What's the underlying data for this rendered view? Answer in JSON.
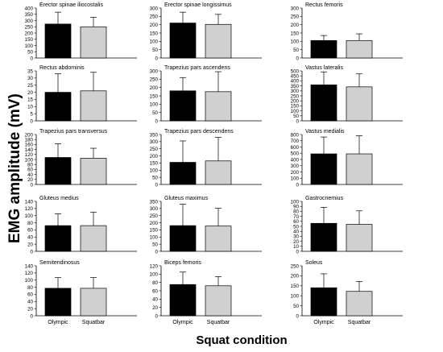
{
  "figure": {
    "ylabel": "EMG amplitude (mV)",
    "xlabel": "Squat condition",
    "legend_categories": [
      "Olympic",
      "Squatbar"
    ]
  },
  "colors": {
    "olympic": "#000000",
    "squatbar": "#d0d0d0",
    "axis": "#000000"
  },
  "chart_data": [
    {
      "type": "bar",
      "title": "Erector spinae iliocostalis",
      "categories": [
        "Olympic",
        "Squatbar"
      ],
      "values": [
        272,
        250
      ],
      "errors": [
        95,
        75
      ],
      "ylim": [
        0,
        400
      ],
      "yticks": [
        0,
        50,
        100,
        150,
        200,
        250,
        300,
        350,
        400
      ],
      "show_xticks": false
    },
    {
      "type": "bar",
      "title": "Erector spinae longissimus",
      "categories": [
        "Olympic",
        "Squatbar"
      ],
      "values": [
        210,
        202
      ],
      "errors": [
        65,
        60
      ],
      "ylim": [
        0,
        300
      ],
      "yticks": [
        0,
        50,
        100,
        150,
        200,
        250,
        300
      ],
      "show_xticks": false
    },
    {
      "type": "bar",
      "title": "Rectus femoris",
      "categories": [
        "Olympic",
        "Squatbar"
      ],
      "values": [
        105,
        105
      ],
      "errors": [
        30,
        40
      ],
      "ylim": [
        0,
        300
      ],
      "yticks": [
        0,
        50,
        100,
        150,
        200,
        250,
        300
      ],
      "show_xticks": false
    },
    {
      "type": "bar",
      "title": "Rectus abdominis",
      "categories": [
        "Olympic",
        "Squatbar"
      ],
      "values": [
        20,
        21
      ],
      "errors": [
        13,
        13
      ],
      "ylim": [
        0,
        35
      ],
      "yticks": [
        0,
        5,
        10,
        15,
        20,
        25,
        30,
        35
      ],
      "show_xticks": false
    },
    {
      "type": "bar",
      "title": "Trapezius pars ascendens",
      "categories": [
        "Olympic",
        "Squatbar"
      ],
      "values": [
        180,
        175
      ],
      "errors": [
        80,
        120
      ],
      "ylim": [
        0,
        300
      ],
      "yticks": [
        0,
        50,
        100,
        150,
        200,
        250,
        300
      ],
      "show_xticks": false
    },
    {
      "type": "bar",
      "title": "Vastus lateralis",
      "categories": [
        "Olympic",
        "Squatbar"
      ],
      "values": [
        360,
        340
      ],
      "errors": [
        130,
        130
      ],
      "ylim": [
        0,
        500
      ],
      "yticks": [
        0,
        50,
        100,
        150,
        200,
        250,
        300,
        350,
        400,
        450,
        500
      ],
      "show_xticks": false
    },
    {
      "type": "bar",
      "title": "Trapezius pars transversus",
      "categories": [
        "Olympic",
        "Squatbar"
      ],
      "values": [
        108,
        105
      ],
      "errors": [
        55,
        40
      ],
      "ylim": [
        0,
        200
      ],
      "yticks": [
        0,
        20,
        40,
        60,
        80,
        100,
        120,
        140,
        160,
        180,
        200
      ],
      "show_xticks": false
    },
    {
      "type": "bar",
      "title": "Trapezius pars descendens",
      "categories": [
        "Olympic",
        "Squatbar"
      ],
      "values": [
        155,
        165
      ],
      "errors": [
        150,
        165
      ],
      "ylim": [
        0,
        350
      ],
      "yticks": [
        0,
        50,
        100,
        150,
        200,
        250,
        300,
        350
      ],
      "show_xticks": false
    },
    {
      "type": "bar",
      "title": "Vastus medialis",
      "categories": [
        "Olympic",
        "Squatbar"
      ],
      "values": [
        490,
        490
      ],
      "errors": [
        270,
        290
      ],
      "ylim": [
        0,
        800
      ],
      "yticks": [
        0,
        100,
        200,
        300,
        400,
        500,
        600,
        700,
        800
      ],
      "show_xticks": false
    },
    {
      "type": "bar",
      "title": "Gluteus medius",
      "categories": [
        "Olympic",
        "Squatbar"
      ],
      "values": [
        72,
        72
      ],
      "errors": [
        33,
        38
      ],
      "ylim": [
        0,
        140
      ],
      "yticks": [
        0,
        20,
        40,
        60,
        80,
        100,
        120,
        140
      ],
      "show_xticks": false
    },
    {
      "type": "bar",
      "title": "Gluteus maximus",
      "categories": [
        "Olympic",
        "Squatbar"
      ],
      "values": [
        180,
        177
      ],
      "errors": [
        150,
        125
      ],
      "ylim": [
        0,
        350
      ],
      "yticks": [
        0,
        50,
        100,
        150,
        200,
        250,
        300,
        350
      ],
      "show_xticks": false
    },
    {
      "type": "bar",
      "title": "Gastrocnemius",
      "categories": [
        "Olympic",
        "Squatbar"
      ],
      "values": [
        56,
        54
      ],
      "errors": [
        32,
        27
      ],
      "ylim": [
        0,
        100
      ],
      "yticks": [
        0,
        10,
        20,
        30,
        40,
        50,
        60,
        70,
        80,
        90,
        100
      ],
      "show_xticks": false
    },
    {
      "type": "bar",
      "title": "Semitendinosus",
      "categories": [
        "Olympic",
        "Squatbar"
      ],
      "values": [
        77,
        77
      ],
      "errors": [
        30,
        30
      ],
      "ylim": [
        0,
        140
      ],
      "yticks": [
        0,
        20,
        40,
        60,
        80,
        100,
        120,
        140
      ],
      "show_xticks": true
    },
    {
      "type": "bar",
      "title": "Biceps femoris",
      "categories": [
        "Olympic",
        "Squatbar"
      ],
      "values": [
        75,
        72
      ],
      "errors": [
        30,
        22
      ],
      "ylim": [
        0,
        120
      ],
      "yticks": [
        0,
        20,
        40,
        60,
        80,
        100,
        120
      ],
      "show_xticks": true
    },
    {
      "type": "bar",
      "title": "Soleus",
      "categories": [
        "Olympic",
        "Squatbar"
      ],
      "values": [
        140,
        122
      ],
      "errors": [
        70,
        50
      ],
      "ylim": [
        0,
        250
      ],
      "yticks": [
        0,
        50,
        100,
        150,
        200,
        250
      ],
      "show_xticks": true
    }
  ]
}
